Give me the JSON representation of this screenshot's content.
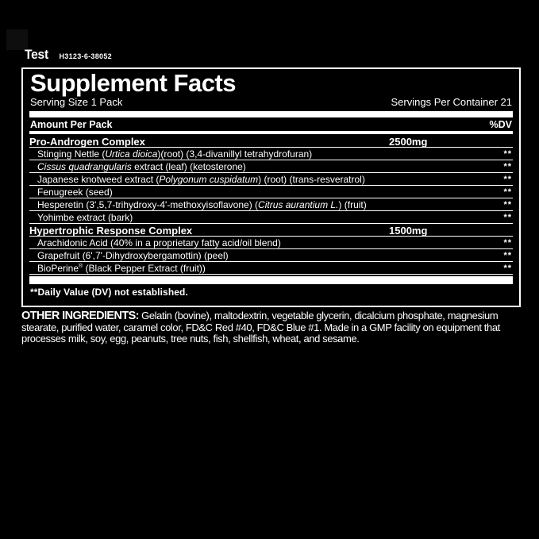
{
  "header": {
    "brand": "Test",
    "lot_code": "H3123-6-38052"
  },
  "panel": {
    "title": "Supplement Facts",
    "serving_size": "Serving Size 1 Pack",
    "servings_per_container": "Servings Per Container 21",
    "amount_header": "Amount Per Pack",
    "dv_header": "%DV",
    "rows": [
      {
        "type": "complex",
        "segments": [
          {
            "text": "Pro-Androgen Complex"
          }
        ],
        "amount": "2500mg",
        "dv": ""
      },
      {
        "type": "ingredient",
        "segments": [
          {
            "text": "Stinging Nettle ("
          },
          {
            "text": "Urtica dioica",
            "italic": true
          },
          {
            "text": ")(root) (3,4-divanillyl tetrahydrofuran)"
          }
        ],
        "dv": "**"
      },
      {
        "type": "ingredient",
        "segments": [
          {
            "text": "Cissus quadrangularis",
            "italic": true
          },
          {
            "text": " extract (leaf) (ketosterone)"
          }
        ],
        "dv": "**"
      },
      {
        "type": "ingredient",
        "segments": [
          {
            "text": "Japanese knotweed extract ("
          },
          {
            "text": "Polygonum cuspidatum",
            "italic": true
          },
          {
            "text": ") (root) (trans-resveratrol)"
          }
        ],
        "dv": "**"
      },
      {
        "type": "ingredient",
        "segments": [
          {
            "text": "Fenugreek (seed)"
          }
        ],
        "dv": "**"
      },
      {
        "type": "ingredient",
        "segments": [
          {
            "text": "Hesperetin (3',5,7-trihydroxy-4'-methoxyisoflavone) ("
          },
          {
            "text": "Citrus aurantium L.",
            "italic": true
          },
          {
            "text": ") (fruit)"
          }
        ],
        "dv": "**"
      },
      {
        "type": "ingredient",
        "segments": [
          {
            "text": "Yohimbe extract (bark)"
          }
        ],
        "dv": "**"
      },
      {
        "type": "complex",
        "segments": [
          {
            "text": "Hypertrophic Response Complex"
          }
        ],
        "amount": "1500mg",
        "dv": ""
      },
      {
        "type": "ingredient",
        "segments": [
          {
            "text": "Arachidonic Acid (40% in a proprietary fatty acid/oil blend)"
          }
        ],
        "dv": "**"
      },
      {
        "type": "ingredient",
        "segments": [
          {
            "text": "Grapefruit (6',7'-Dihydroxybergamottin) (peel)"
          }
        ],
        "dv": "**"
      },
      {
        "type": "ingredient",
        "segments": [
          {
            "text": "BioPerine"
          },
          {
            "text": "®",
            "sup": true
          },
          {
            "text": " (Black Pepper Extract (fruit))"
          }
        ],
        "dv": "**"
      }
    ],
    "footnote": "**Daily Value (DV) not established."
  },
  "other_ingredients": {
    "label": "OTHER INGREDIENTS:",
    "text": " Gelatin (bovine), maltodextrin, vegetable glycerin, dicalcium phosphate, magnesium stearate, purified water, caramel color, FD&C Red #40, FD&C Blue #1. Made in a GMP facility on equipment that processes milk, soy, egg, peanuts, tree nuts, fish, shellfish, wheat, and sesame."
  },
  "colors": {
    "background": "#000000",
    "text": "#ffffff",
    "panel_border": "#ffffff"
  }
}
